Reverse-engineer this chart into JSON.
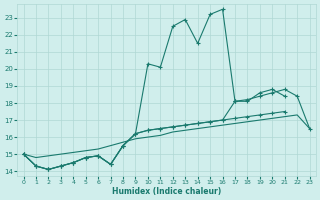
{
  "xlabel": "Humidex (Indice chaleur)",
  "x_values": [
    0,
    1,
    2,
    3,
    4,
    5,
    6,
    7,
    8,
    9,
    10,
    11,
    12,
    13,
    14,
    15,
    16,
    17,
    18,
    19,
    20,
    21,
    22,
    23
  ],
  "line_main": [
    15.0,
    14.3,
    14.1,
    14.3,
    14.5,
    14.8,
    14.9,
    14.4,
    15.5,
    16.2,
    20.3,
    20.1,
    22.5,
    22.9,
    21.5,
    23.2,
    23.5,
    18.1,
    null,
    null,
    null,
    null,
    null,
    null
  ],
  "line_upper": [
    null,
    null,
    null,
    null,
    null,
    null,
    null,
    null,
    null,
    null,
    null,
    null,
    null,
    null,
    null,
    null,
    null,
    18.1,
    18.1,
    18.6,
    18.8,
    18.4,
    null,
    null
  ],
  "line_mid": [
    15.0,
    14.3,
    14.1,
    14.3,
    14.5,
    14.8,
    14.9,
    14.4,
    15.5,
    16.2,
    16.4,
    16.5,
    16.6,
    16.7,
    16.8,
    16.9,
    17.0,
    17.1,
    17.2,
    17.3,
    17.4,
    17.5,
    null,
    null
  ],
  "line_wide": [
    15.0,
    14.3,
    14.1,
    14.3,
    14.5,
    14.8,
    14.9,
    14.4,
    15.5,
    16.2,
    16.4,
    16.5,
    16.6,
    16.7,
    16.8,
    16.9,
    17.0,
    18.1,
    18.2,
    18.4,
    18.6,
    18.8,
    18.4,
    16.5
  ],
  "line_low": [
    15.0,
    14.8,
    14.9,
    15.0,
    15.1,
    15.2,
    15.3,
    15.5,
    15.7,
    15.9,
    16.0,
    16.1,
    16.3,
    16.4,
    16.5,
    16.6,
    16.7,
    16.8,
    16.9,
    17.0,
    17.1,
    17.2,
    17.3,
    16.5
  ],
  "line_color": "#1a7a6e",
  "bg_color": "#d0eeec",
  "grid_color": "#b0d8d4",
  "ylim": [
    13.7,
    23.8
  ],
  "xlim": [
    -0.5,
    23.5
  ],
  "yticks": [
    14,
    15,
    16,
    17,
    18,
    19,
    20,
    21,
    22,
    23
  ],
  "xticks": [
    0,
    1,
    2,
    3,
    4,
    5,
    6,
    7,
    8,
    9,
    10,
    11,
    12,
    13,
    14,
    15,
    16,
    17,
    18,
    19,
    20,
    21,
    22,
    23
  ]
}
